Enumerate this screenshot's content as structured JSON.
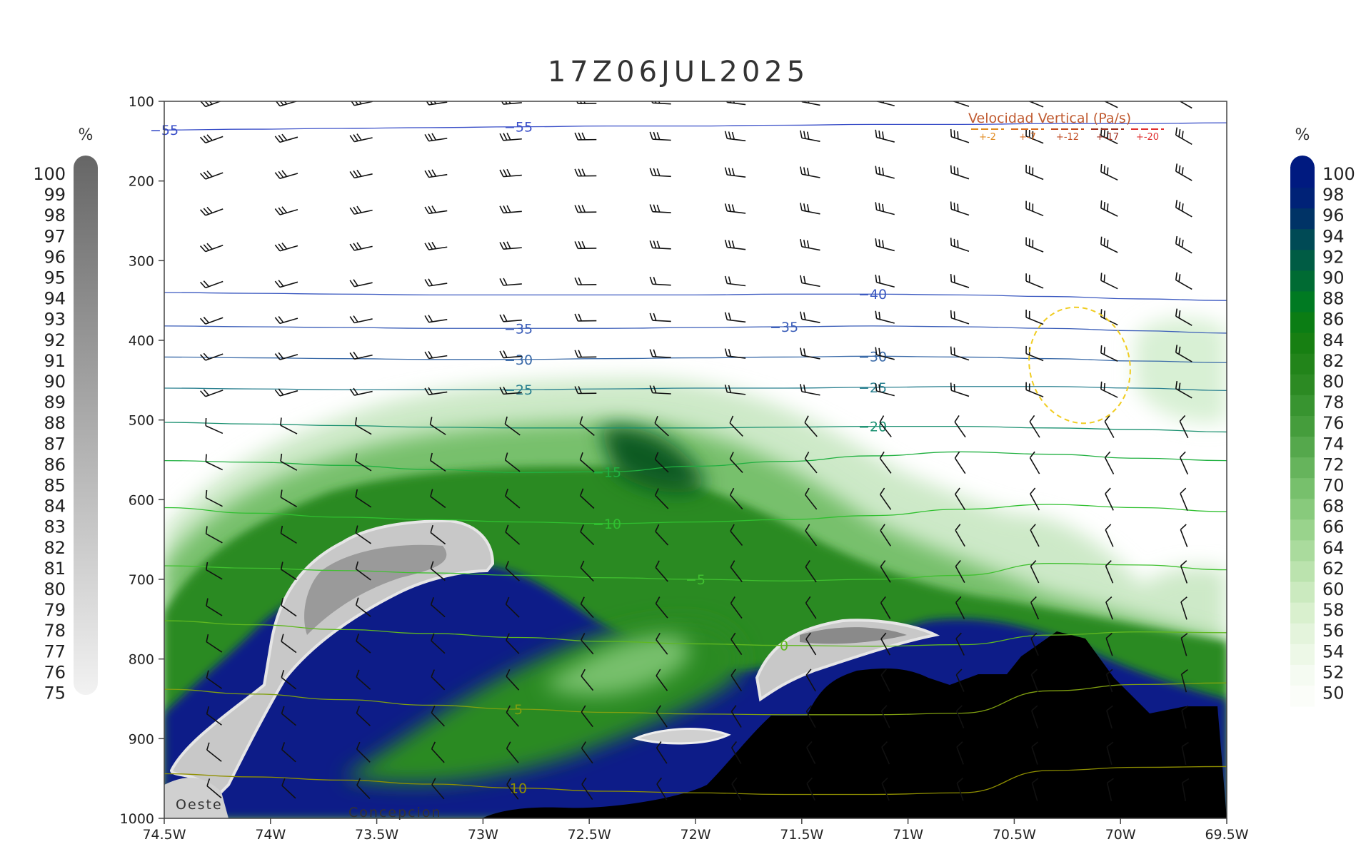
{
  "chart_data": {
    "type": "heatmap",
    "title": "17Z06JUL2025",
    "x_ticks": [
      "74.5W",
      "74W",
      "73.5W",
      "73W",
      "72.5W",
      "72W",
      "71.5W",
      "71W",
      "70.5W",
      "70W",
      "69.5W"
    ],
    "y_ticks": [
      "100",
      "200",
      "300",
      "400",
      "500",
      "600",
      "700",
      "800",
      "900",
      "1000"
    ],
    "xlim": [
      -74.5,
      -69.5
    ],
    "ylim": [
      1000,
      100
    ],
    "left_colorbar": {
      "unit": "%",
      "labels": [
        "100",
        "99",
        "98",
        "97",
        "96",
        "95",
        "94",
        "93",
        "92",
        "91",
        "90",
        "89",
        "88",
        "87",
        "86",
        "85",
        "84",
        "83",
        "82",
        "81",
        "80",
        "79",
        "78",
        "77",
        "76",
        "75"
      ],
      "color_top": "#666666",
      "color_bottom": "#f2f2f2"
    },
    "right_colorbar": {
      "unit": "%",
      "labels": [
        "100",
        "98",
        "96",
        "94",
        "92",
        "90",
        "88",
        "86",
        "84",
        "82",
        "80",
        "78",
        "76",
        "74",
        "72",
        "70",
        "68",
        "66",
        "64",
        "62",
        "60",
        "58",
        "56",
        "54",
        "52",
        "50"
      ],
      "colors": [
        "#001a80",
        "#002277",
        "#003366",
        "#004a55",
        "#005c44",
        "#006b33",
        "#007a22",
        "#0b7d14",
        "#177f12",
        "#22841a",
        "#2c8a23",
        "#389430",
        "#459d3c",
        "#55a84c",
        "#66b45c",
        "#77c06c",
        "#88ca7c",
        "#99d38c",
        "#aadb9d",
        "#bbe3ae",
        "#cbeabf",
        "#d9f0ce",
        "#e4f4dc",
        "#edf8e7",
        "#f5fbf2",
        "#fbfdf9"
      ]
    },
    "temperature_contours": [
      {
        "label": "-55",
        "color": "#3a4fc8",
        "p": [
          136,
          135,
          134,
          133,
          132,
          131,
          131,
          130,
          129,
          129,
          128,
          128,
          127
        ]
      },
      {
        "label": "-40",
        "color": "#3a58c0",
        "p": [
          340,
          341,
          342,
          343,
          343,
          343,
          343,
          342,
          342,
          343,
          345,
          348,
          350
        ]
      },
      {
        "label": "-35",
        "color": "#3a5db8",
        "p": [
          382,
          383,
          384,
          385,
          385,
          385,
          384,
          383,
          382,
          383,
          385,
          388,
          391
        ]
      },
      {
        "label": "-30",
        "color": "#3a6aa8",
        "p": [
          421,
          422,
          423,
          424,
          424,
          423,
          422,
          421,
          420,
          421,
          423,
          426,
          428
        ]
      },
      {
        "label": "-25",
        "color": "#2a8090",
        "p": [
          460,
          461,
          462,
          462,
          462,
          461,
          460,
          460,
          459,
          458,
          458,
          460,
          463
        ]
      },
      {
        "label": "-20",
        "color": "#1a9070",
        "p": [
          503,
          505,
          507,
          509,
          510,
          510,
          510,
          509,
          508,
          508,
          510,
          512,
          515
        ]
      },
      {
        "label": "-15",
        "color": "#20b040",
        "p": [
          551,
          553,
          557,
          562,
          566,
          565,
          558,
          552,
          545,
          540,
          543,
          548,
          551
        ]
      },
      {
        "label": "-10",
        "color": "#30c030",
        "p": [
          610,
          617,
          622,
          625,
          628,
          630,
          628,
          625,
          620,
          612,
          606,
          610,
          615
        ]
      },
      {
        "label": "-5",
        "color": "#40c030",
        "p": [
          683,
          686,
          689,
          692,
          695,
          698,
          700,
          702,
          700,
          695,
          680,
          682,
          688
        ]
      },
      {
        "label": "0",
        "color": "#60b820",
        "p": [
          752,
          757,
          763,
          768,
          773,
          778,
          781,
          783,
          784,
          782,
          770,
          766,
          767
        ]
      },
      {
        "label": "5",
        "color": "#80a010",
        "p": [
          838,
          844,
          851,
          858,
          863,
          867,
          869,
          870,
          870,
          868,
          840,
          832,
          830
        ]
      },
      {
        "label": "10",
        "color": "#909000",
        "p": [
          944,
          948,
          952,
          957,
          962,
          966,
          968,
          970,
          970,
          968,
          940,
          936,
          935
        ]
      }
    ],
    "legend": {
      "title": "Velocidad Vertical  (Pa/s)",
      "entries": [
        "+-2",
        "+-7",
        "+-12",
        "+-17",
        "+-20"
      ],
      "colors": [
        "#e08a20",
        "#d86a20",
        "#c04a20",
        "#a03020",
        "#e03030"
      ]
    },
    "annotations": [
      "Oeste",
      "Concepcion"
    ]
  }
}
